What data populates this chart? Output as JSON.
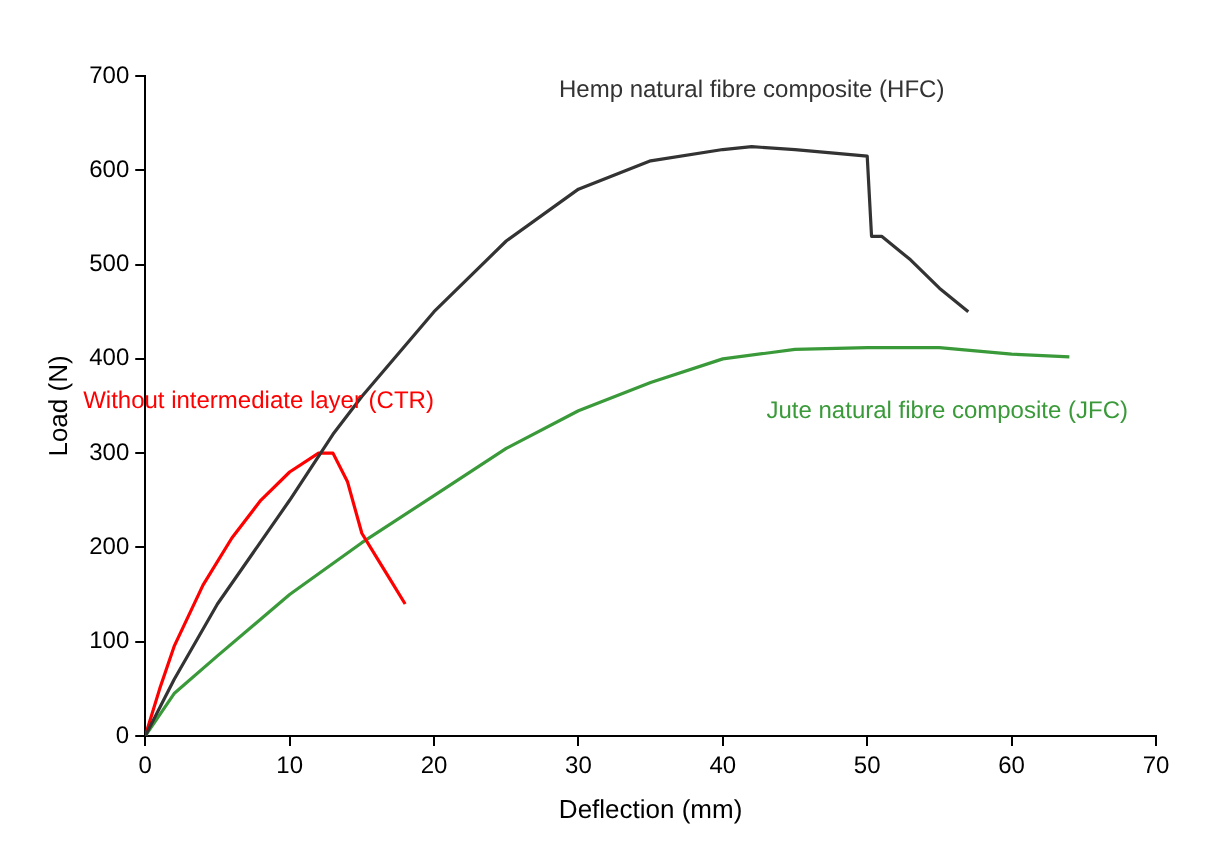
{
  "chart_data": {
    "type": "line",
    "xlabel": "Deflection (mm)",
    "ylabel": "Load (N)",
    "xlim": [
      0,
      70
    ],
    "xticks": [
      0,
      10,
      20,
      30,
      40,
      50,
      60,
      70
    ],
    "ylim": [
      0,
      700
    ],
    "yticks": [
      0,
      100,
      200,
      300,
      400,
      500,
      600,
      700
    ],
    "grid": false,
    "legend": false,
    "marker": "none",
    "line_style": "solid",
    "series": [
      {
        "name": "Hemp natural fibre composite (HFC)",
        "color": "#333333",
        "x": [
          0,
          2,
          5,
          10,
          13,
          15,
          20,
          25,
          30,
          35,
          40,
          42,
          45,
          50,
          50.3,
          51,
          53,
          55,
          57
        ],
        "values": [
          0,
          60,
          140,
          250,
          320,
          360,
          450,
          525,
          580,
          610,
          622,
          625,
          622,
          615,
          530,
          530,
          505,
          475,
          450
        ]
      },
      {
        "name": "Without intermediate layer (CTR)",
        "color": "#ff0000",
        "x": [
          0,
          1,
          2,
          4,
          6,
          8,
          10,
          12,
          13,
          14,
          15,
          16,
          17,
          18
        ],
        "values": [
          0,
          50,
          95,
          160,
          210,
          250,
          280,
          300,
          300,
          270,
          215,
          190,
          165,
          140
        ]
      },
      {
        "name": "Jute natural fibre composite (JFC)",
        "color": "#3a9a3a",
        "x": [
          0,
          2,
          5,
          10,
          15,
          20,
          25,
          30,
          35,
          40,
          45,
          50,
          55,
          60,
          64
        ],
        "values": [
          0,
          45,
          85,
          150,
          205,
          255,
          305,
          345,
          375,
          400,
          410,
          412,
          412,
          405,
          402
        ]
      }
    ]
  }
}
